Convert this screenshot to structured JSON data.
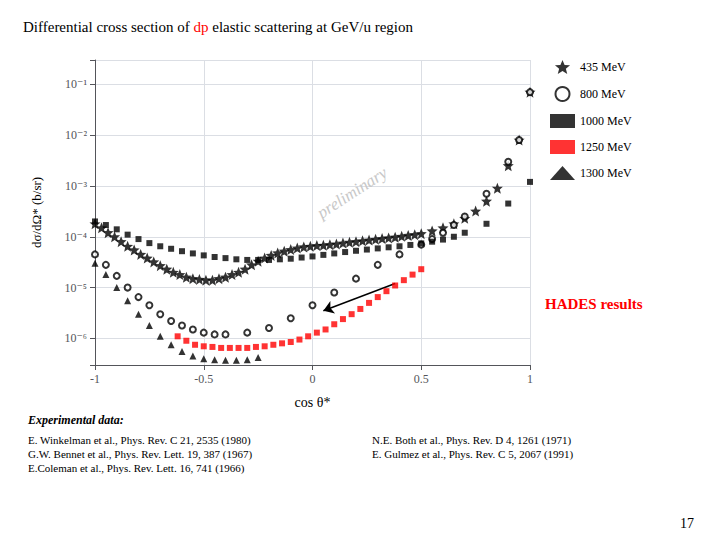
{
  "chart_data": {
    "type": "scatter",
    "title": [
      {
        "text": "Differential cross section of ",
        "color": "black"
      },
      {
        "text": "dp",
        "color": "red"
      },
      {
        "text": " elastic scattering at GeV/u region",
        "color": "black"
      }
    ],
    "xlabel": "cos θ*",
    "ylabel": "dσ/dΩ* (b/sr)",
    "log": "y",
    "xlim": [
      -1.0,
      1.0
    ],
    "ylim": [
      3e-07,
      0.3
    ],
    "xticks": [
      -1,
      -0.5,
      0,
      0.5,
      1
    ],
    "yticks": [
      {
        "value": 1e-06,
        "label": "10⁻⁶"
      },
      {
        "value": 1e-05,
        "label": "10⁻⁵"
      },
      {
        "value": 0.0001,
        "label": "10⁻⁴"
      },
      {
        "value": 0.001,
        "label": "10⁻³"
      },
      {
        "value": 0.01,
        "label": "10⁻²"
      },
      {
        "value": 0.1,
        "label": "10⁻¹"
      }
    ],
    "grid": true,
    "legend": "right",
    "series": [
      {
        "name": "435 MeV",
        "color": "black",
        "marker": "star",
        "x": [
          -1.0,
          -0.97,
          -0.94,
          -0.91,
          -0.88,
          -0.85,
          -0.82,
          -0.79,
          -0.76,
          -0.73,
          -0.7,
          -0.67,
          -0.64,
          -0.61,
          -0.58,
          -0.55,
          -0.52,
          -0.49,
          -0.46,
          -0.43,
          -0.4,
          -0.37,
          -0.34,
          -0.31,
          -0.28,
          -0.25,
          -0.22,
          -0.19,
          -0.16,
          -0.13,
          -0.1,
          -0.07,
          -0.04,
          -0.01,
          0.02,
          0.05,
          0.08,
          0.11,
          0.14,
          0.17,
          0.2,
          0.23,
          0.26,
          0.29,
          0.32,
          0.35,
          0.38,
          0.41,
          0.44,
          0.47,
          0.5,
          0.55,
          0.6,
          0.65,
          0.7,
          0.75,
          0.8,
          0.85,
          0.9,
          0.95,
          1.0
        ],
        "values": [
          0.00018,
          0.00015,
          0.00012,
          0.0001,
          8e-05,
          6.5e-05,
          5.5e-05,
          4.5e-05,
          3.8e-05,
          3.2e-05,
          2.7e-05,
          2.3e-05,
          2e-05,
          1.8e-05,
          1.6e-05,
          1.5e-05,
          1.45e-05,
          1.4e-05,
          1.4e-05,
          1.5e-05,
          1.6e-05,
          1.8e-05,
          2e-05,
          2.3e-05,
          2.8e-05,
          3.3e-05,
          3.8e-05,
          4.3e-05,
          4.8e-05,
          5.2e-05,
          5.6e-05,
          6e-05,
          6.3e-05,
          6.5e-05,
          6.7e-05,
          6.8e-05,
          7e-05,
          7.2e-05,
          7.5e-05,
          7.8e-05,
          8e-05,
          8.3e-05,
          8.6e-05,
          8.9e-05,
          9.2e-05,
          9.5e-05,
          9.8e-05,
          0.000102,
          0.000106,
          0.00011,
          0.000115,
          0.00013,
          0.00015,
          0.00018,
          0.00023,
          0.00032,
          0.0005,
          0.0009,
          0.0025,
          0.008,
          0.07
        ]
      },
      {
        "name": "800 MeV",
        "color": "black",
        "marker": "open_circle",
        "x": [
          -1.0,
          -0.95,
          -0.9,
          -0.85,
          -0.8,
          -0.75,
          -0.7,
          -0.65,
          -0.6,
          -0.55,
          -0.5,
          -0.45,
          -0.4,
          -0.3,
          -0.2,
          -0.1,
          0.0,
          0.1,
          0.2,
          0.3,
          0.4,
          0.5,
          0.55,
          0.6,
          0.65,
          0.7,
          0.8,
          0.9,
          0.95,
          1.0
        ],
        "values": [
          4.5e-05,
          2.8e-05,
          1.7e-05,
          1e-05,
          6.5e-06,
          4.5e-06,
          3e-06,
          2.2e-06,
          1.8e-06,
          1.5e-06,
          1.3e-06,
          1.2e-06,
          1.2e-06,
          1.3e-06,
          1.6e-06,
          2.5e-06,
          4.5e-06,
          8e-06,
          1.5e-05,
          2.8e-05,
          4.5e-05,
          7e-05,
          9e-05,
          0.00012,
          0.00017,
          0.00025,
          0.0007,
          0.003,
          0.008,
          0.07
        ]
      },
      {
        "name": "1000 MeV",
        "color": "black",
        "marker": "square",
        "x": [
          -1.0,
          -0.95,
          -0.9,
          -0.85,
          -0.8,
          -0.75,
          -0.7,
          -0.65,
          -0.6,
          -0.55,
          -0.5,
          -0.45,
          -0.4,
          -0.35,
          -0.3,
          -0.25,
          -0.2,
          -0.15,
          -0.1,
          -0.05,
          0.0,
          0.05,
          0.1,
          0.15,
          0.2,
          0.25,
          0.3,
          0.35,
          0.4,
          0.45,
          0.5,
          0.55,
          0.6,
          0.65,
          0.7,
          0.8,
          0.9,
          1.0
        ],
        "values": [
          0.0002,
          0.00017,
          0.00014,
          0.00011,
          9e-05,
          7.5e-05,
          6.5e-05,
          5.8e-05,
          5.2e-05,
          4.7e-05,
          4.3e-05,
          4e-05,
          3.8e-05,
          3.6e-05,
          3.5e-05,
          3.5e-05,
          3.5e-05,
          3.6e-05,
          3.7e-05,
          3.9e-05,
          4.1e-05,
          4.4e-05,
          4.7e-05,
          5e-05,
          5.3e-05,
          5.6e-05,
          5.9e-05,
          6.2e-05,
          6.5e-05,
          6.9e-05,
          7.4e-05,
          8e-05,
          8.8e-05,
          0.0001,
          0.00012,
          0.00018,
          0.00045,
          0.0012
        ]
      },
      {
        "name": "1250 MeV",
        "color": "red",
        "marker": "square",
        "x": [
          -0.62,
          -0.58,
          -0.54,
          -0.5,
          -0.46,
          -0.42,
          -0.38,
          -0.34,
          -0.3,
          -0.26,
          -0.22,
          -0.18,
          -0.14,
          -0.1,
          -0.06,
          -0.02,
          0.02,
          0.06,
          0.1,
          0.14,
          0.18,
          0.22,
          0.26,
          0.3,
          0.34,
          0.38,
          0.42,
          0.46,
          0.5
        ],
        "values": [
          1.1e-06,
          9e-07,
          7.5e-07,
          7e-07,
          6.8e-07,
          6.5e-07,
          6.5e-07,
          6.5e-07,
          6.5e-07,
          6.8e-07,
          7e-07,
          7.5e-07,
          8e-07,
          8.5e-07,
          9.5e-07,
          1.1e-06,
          1.3e-06,
          1.5e-06,
          1.9e-06,
          2.4e-06,
          3e-06,
          3.8e-06,
          5e-06,
          6.5e-06,
          8.5e-06,
          1.1e-05,
          1.4e-05,
          1.8e-05,
          2.3e-05
        ]
      },
      {
        "name": "1300 MeV",
        "color": "black",
        "marker": "triangle",
        "x": [
          -1.0,
          -0.95,
          -0.9,
          -0.85,
          -0.8,
          -0.75,
          -0.7,
          -0.65,
          -0.6,
          -0.55,
          -0.5,
          -0.45,
          -0.4,
          -0.35,
          -0.3,
          -0.25
        ],
        "values": [
          3e-05,
          1.8e-05,
          1e-05,
          5.5e-06,
          3e-06,
          1.8e-06,
          1.1e-06,
          7.5e-07,
          5.5e-07,
          4.5e-07,
          4e-07,
          3.8e-07,
          3.7e-07,
          3.7e-07,
          3.8e-07,
          4.2e-07
        ]
      }
    ],
    "annotations": [
      {
        "text": "preliminary",
        "x": 0.05,
        "y": 0.0002,
        "color": "#c8c8c8"
      },
      {
        "type": "arrow",
        "from": [
          0.38,
          1.2e-05
        ],
        "to": [
          0.05,
          3.5e-06
        ]
      },
      {
        "text": "HADES results",
        "color": "red"
      },
      {
        "text": "Experimental data:"
      },
      {
        "text": "E. Winkelman et al., Phys. Rev. C 21, 2535 (1980)\nG.W. Bennet et al., Phys. Rev. Lett. 19, 387 (1967)\nE.Coleman et al., Phys. Rev. Lett. 16, 741 (1966)"
      },
      {
        "text": "N.E. Both et al., Phys. Rev. D 4, 1261 (1971)\nE. Gulmez et al., Phys. Rev. C 5, 2067 (1991)"
      },
      {
        "text": "17"
      }
    ]
  }
}
